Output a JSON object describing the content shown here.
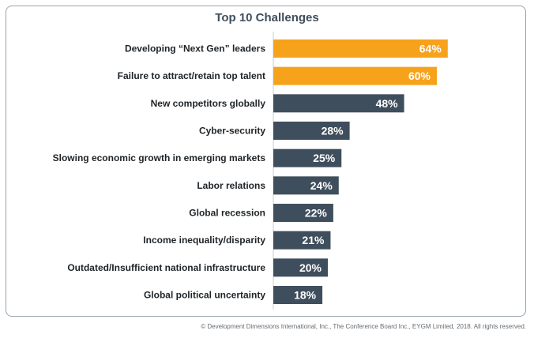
{
  "chart_data": {
    "type": "bar",
    "orientation": "horizontal",
    "title": "Top 10 Challenges",
    "categories": [
      "Developing “Next Gen” leaders",
      "Failure to attract/retain top talent",
      "New competitors globally",
      "Cyber-security",
      "Slowing economic growth in emerging markets",
      "Labor relations",
      "Global recession",
      "Income inequality/disparity",
      "Outdated/Insufficient national infrastructure",
      "Global political uncertainty"
    ],
    "values": [
      64,
      60,
      48,
      28,
      25,
      24,
      22,
      21,
      20,
      18
    ],
    "value_labels": [
      "64%",
      "60%",
      "48%",
      "28%",
      "25%",
      "24%",
      "22%",
      "21%",
      "20%",
      "18%"
    ],
    "xlim": [
      0,
      100
    ],
    "unit": "%",
    "grid": false,
    "legend": "none",
    "colors": {
      "highlight": "#f7a21b",
      "default": "#3f4e5c",
      "axis": "#c9ced3",
      "frame": "#9aa3ab"
    },
    "highlight_indices": [
      0,
      1
    ]
  },
  "footer": "© Development Dimensions International, Inc., The Conference Board Inc., EYGM Limited, 2018. All rights reserved."
}
